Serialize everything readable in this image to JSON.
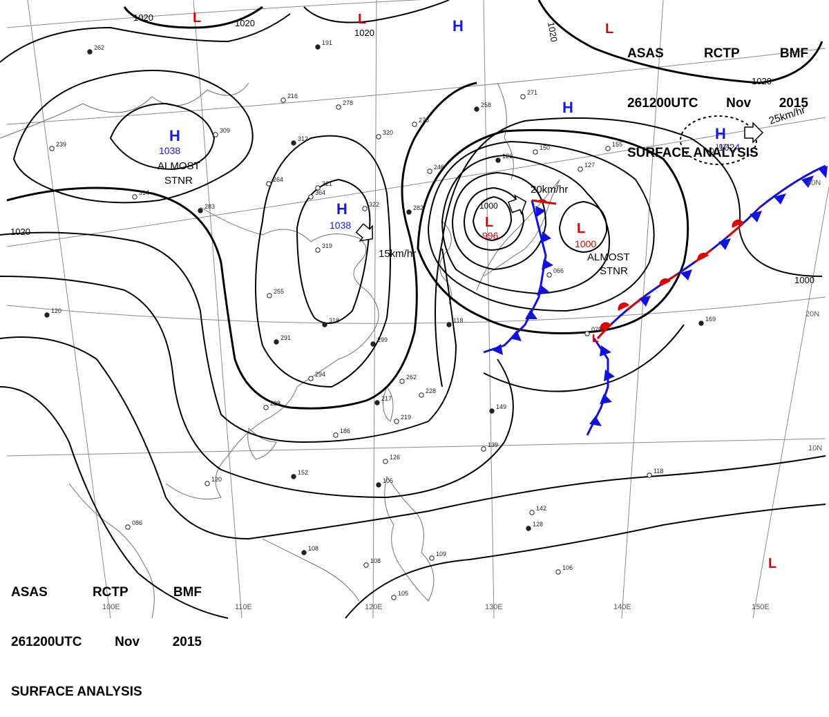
{
  "header": {
    "agency": "ASAS",
    "station": "RCTP",
    "code": "BMF",
    "datetime": "261200UTC",
    "month": "Nov",
    "year": "2015",
    "title": "SURFACE ANALYSIS"
  },
  "colors": {
    "isobar": "#000000",
    "high": "#1a1adb",
    "low": "#e00000",
    "cold_front": "#1010e0",
    "warm_front": "#e00000",
    "grid": "#8a8a8a",
    "coast": "#707070"
  },
  "isobar_labels": [
    "1020",
    "1020",
    "1020",
    "1020",
    "1020",
    "1020",
    "1000"
  ],
  "pressure_systems": [
    {
      "type": "H",
      "value": "1038",
      "note": "ALMOST STNR"
    },
    {
      "type": "H",
      "value": "1038",
      "motion": "15km/hr"
    },
    {
      "type": "L",
      "value": "996",
      "motion": "20km/hr"
    },
    {
      "type": "L",
      "value": "1000",
      "note": "ALMOST STNR"
    },
    {
      "type": "H",
      "value": "1024",
      "motion": "25km/hr"
    },
    {
      "type": "L",
      "value": ""
    },
    {
      "type": "L",
      "value": ""
    },
    {
      "type": "L",
      "value": ""
    },
    {
      "type": "L",
      "value": ""
    },
    {
      "type": "H",
      "value": ""
    },
    {
      "type": "H",
      "value": ""
    }
  ],
  "longitude_labels": [
    "100E",
    "110E",
    "120E",
    "130E",
    "140E",
    "150E"
  ],
  "latitude_labels": [
    "30N",
    "20N",
    "10N"
  ],
  "station_plots": [
    "262",
    "314",
    "239",
    "120",
    "228",
    "186",
    "152",
    "120",
    "086",
    "108",
    "108",
    "105",
    "291",
    "255",
    "319",
    "318",
    "364",
    "321",
    "299",
    "294",
    "262",
    "217",
    "228",
    "219",
    "149",
    "139",
    "142",
    "128",
    "118",
    "126",
    "105",
    "079",
    "066",
    "169",
    "109",
    "106",
    "191",
    "278",
    "216",
    "312",
    "309",
    "278",
    "258",
    "271",
    "246",
    "282",
    "322",
    "320",
    "283",
    "264",
    "150",
    "126",
    "155",
    "127",
    "118",
    "1024"
  ]
}
